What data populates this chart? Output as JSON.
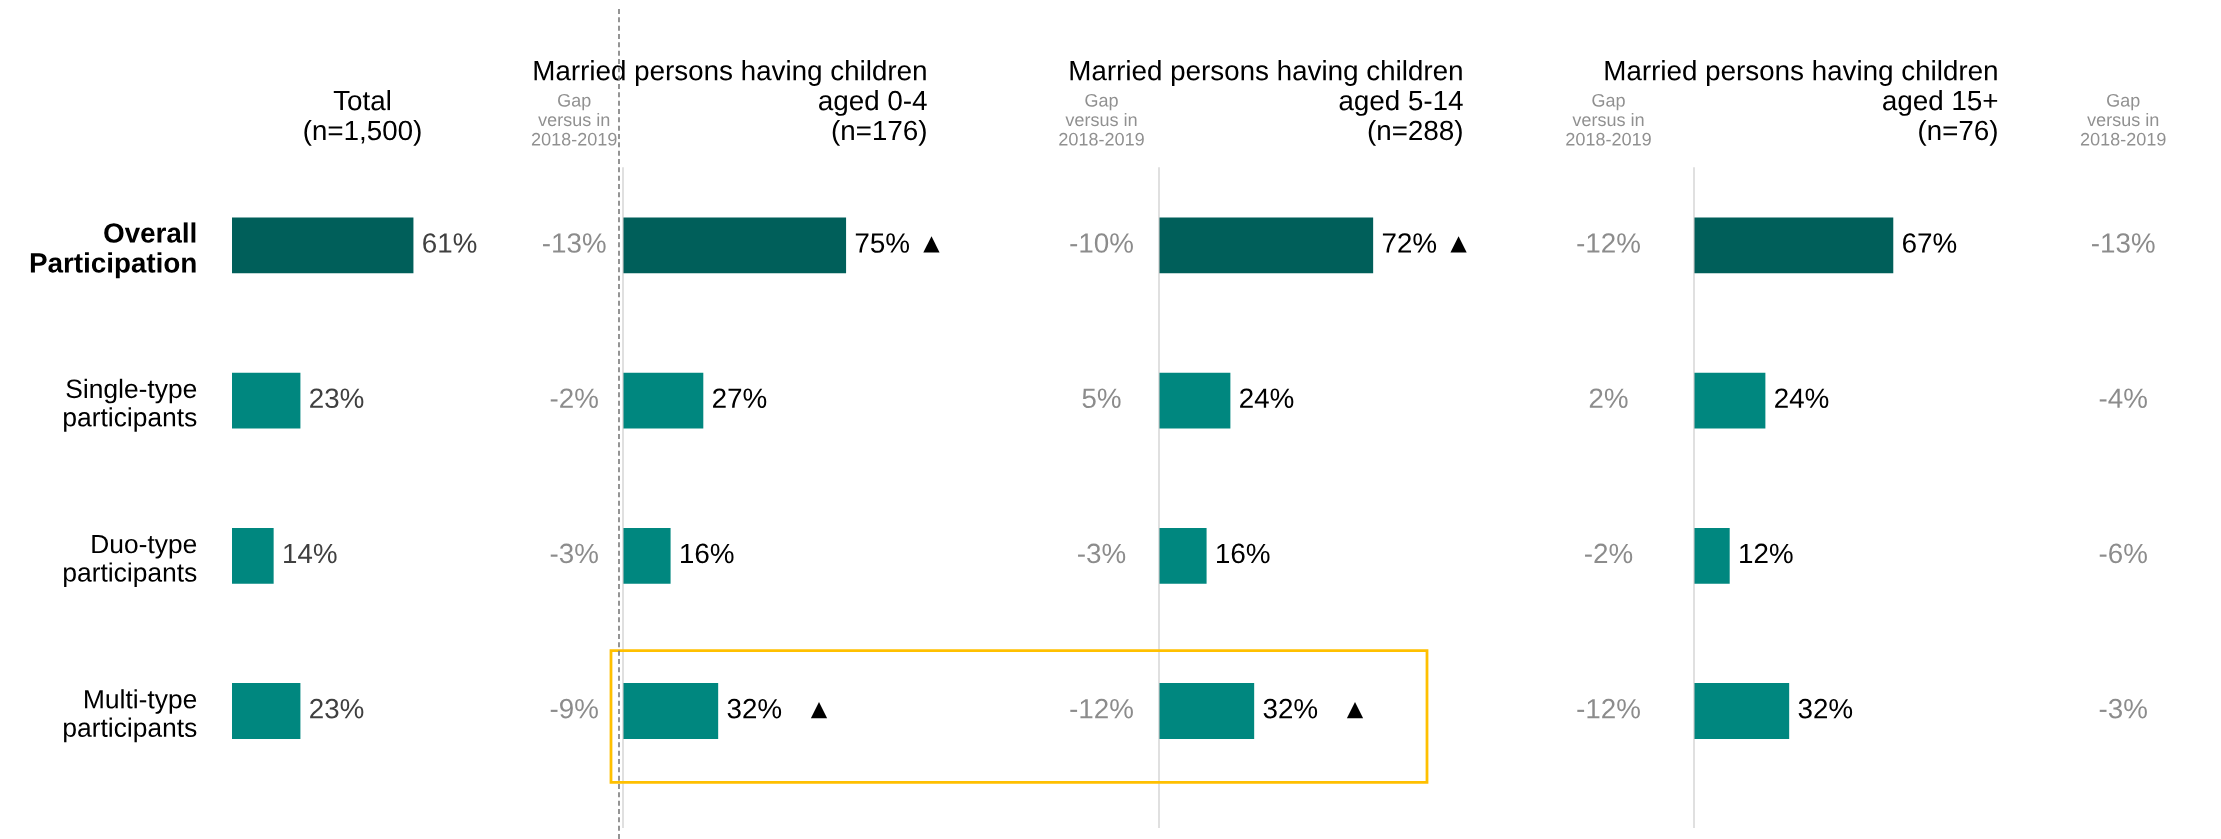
{
  "chart_data": [
    {
      "type": "bar",
      "orientation": "horizontal",
      "title": "Total\n(n=1,500)",
      "categories": [
        "Overall\nParticipation",
        "Single-type\nparticipants",
        "Duo-type\nparticipants",
        "Multi-type\nparticipants"
      ],
      "values": [
        61,
        23,
        14,
        23
      ],
      "colors": [
        "#005f5a",
        "#00877f",
        "#00877f",
        "#00877f"
      ],
      "value_labels": [
        "61%",
        "23%",
        "14%",
        "23%"
      ],
      "tick_labels": "y",
      "annotations": [
        "Gap\nversus in\n2018-2019",
        "-13%",
        "-2%",
        "-3%",
        "-9%"
      ]
    },
    {
      "type": "bar",
      "orientation": "horizontal",
      "title": "Married persons having children\naged 0-4\n(n=176)",
      "categories": [
        null,
        null,
        null,
        null
      ],
      "values": [
        75,
        27,
        16,
        32
      ],
      "colors": [
        "#005f5a",
        "#00877f",
        "#00877f",
        "#00877f"
      ],
      "value_labels": [
        "75% ▲",
        "27%",
        "16%",
        "32%   ▲"
      ],
      "tick_labels": false,
      "annotations": [
        "Gap\nversus in\n2018-2019",
        "-10%",
        "5%",
        "-3%",
        "-12%"
      ]
    },
    {
      "type": "bar",
      "orientation": "horizontal",
      "title": "Married persons having children\naged 5-14\n(n=288)",
      "categories": [
        null,
        null,
        null,
        null
      ],
      "values": [
        72,
        24,
        16,
        32
      ],
      "colors": [
        "#005f5a",
        "#00877f",
        "#00877f",
        "#00877f"
      ],
      "value_labels": [
        "72% ▲",
        "24%",
        "16%",
        "32%   ▲"
      ],
      "tick_labels": false,
      "annotations": [
        "Gap\nversus in\n2018-2019",
        "-12%",
        "2%",
        "-2%",
        "-12%"
      ]
    },
    {
      "type": "bar",
      "orientation": "horizontal",
      "title": "Married persons having children\naged 15+\n(n=76)",
      "categories": [
        null,
        null,
        null,
        null
      ],
      "values": [
        67,
        24,
        12,
        32
      ],
      "colors": [
        "#005f5a",
        "#00877f",
        "#00877f",
        "#00877f"
      ],
      "value_labels": [
        "67%",
        "24%",
        "12%",
        "32%"
      ],
      "tick_labels": false,
      "annotations": [
        "Gap\nversus in\n2018-2019",
        "-13%",
        "-4%",
        "-6%",
        "-3%"
      ]
    }
  ]
}
